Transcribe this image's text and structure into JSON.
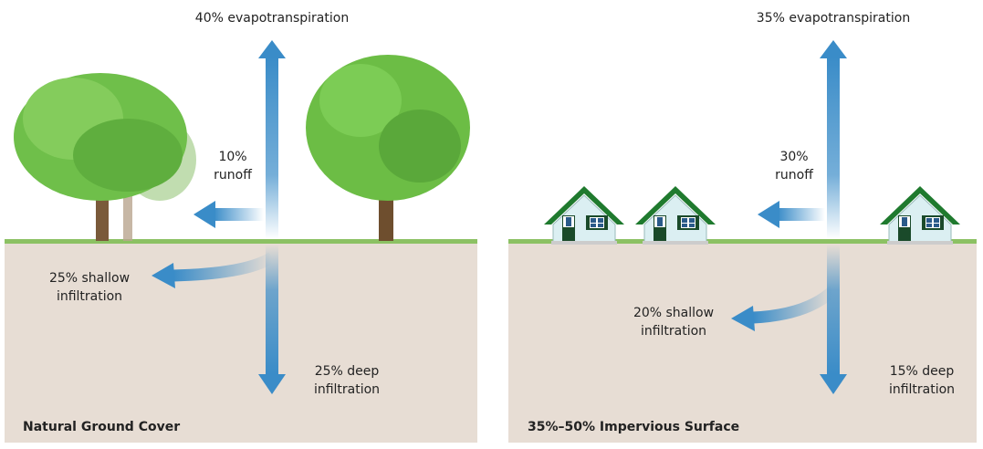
{
  "panels": [
    {
      "title": "Natural Ground Cover",
      "evapotranspiration": "40% evapotranspiration",
      "runoff": [
        "10%",
        "runoff"
      ],
      "shallow_infiltration": [
        "25% shallow",
        "infiltration"
      ],
      "deep_infiltration": [
        "25% deep",
        "infiltration"
      ]
    },
    {
      "title": "35%–50% Impervious Surface",
      "evapotranspiration": "35% evapotranspiration",
      "runoff": [
        "30%",
        "runoff"
      ],
      "shallow_infiltration": [
        "20% shallow",
        "infiltration"
      ],
      "deep_infiltration": [
        "15% deep",
        "infiltration"
      ]
    }
  ]
}
